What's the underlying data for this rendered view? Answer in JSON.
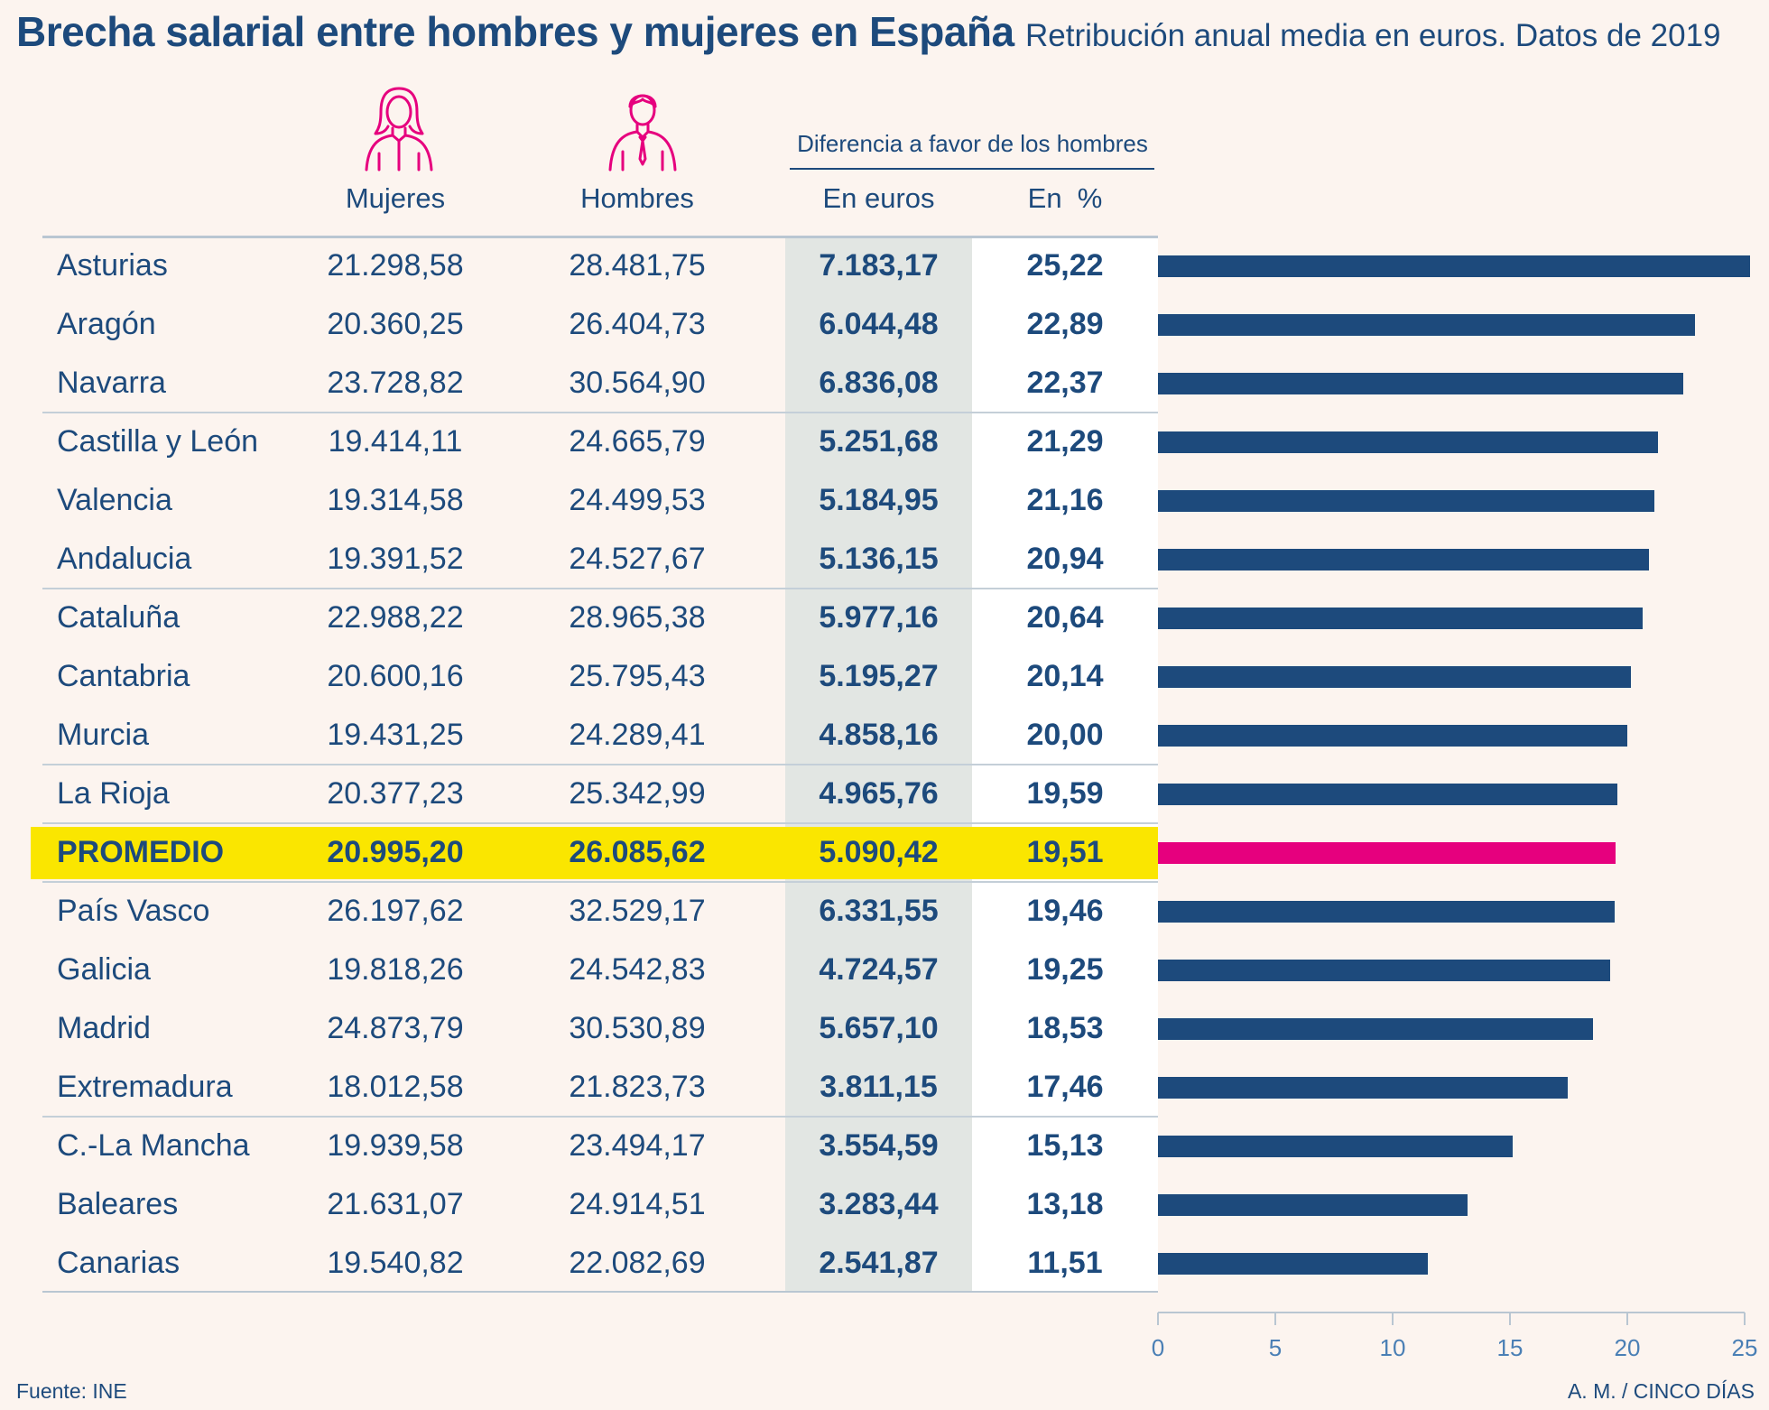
{
  "header": {
    "title": "Brecha salarial entre hombres y mujeres en España",
    "subtitle": "Retribución anual media en euros. Datos de 2019"
  },
  "columns": {
    "women": "Mujeres",
    "men": "Hombres",
    "group": "Diferencia a favor de los hombres",
    "euros": "En euros",
    "percent": "En  %"
  },
  "icons": {
    "women": "woman-icon",
    "men": "man-icon"
  },
  "colors": {
    "bar": "#1d4a7c",
    "average_bar": "#e6007e",
    "highlight": "#fae600",
    "icon": "#e6007e",
    "background": "#fcf4ef"
  },
  "chart_data": {
    "type": "table",
    "rows": [
      {
        "region": "Asturias",
        "women": "21.298,58",
        "men": "28.481,75",
        "diff_eur": "7.183,17",
        "diff_pct": "25,22",
        "pct": 25.22
      },
      {
        "region": "Aragón",
        "women": "20.360,25",
        "men": "26.404,73",
        "diff_eur": "6.044,48",
        "diff_pct": "22,89",
        "pct": 22.89
      },
      {
        "region": "Navarra",
        "women": "23.728,82",
        "men": "30.564,90",
        "diff_eur": "6.836,08",
        "diff_pct": "22,37",
        "pct": 22.37
      },
      {
        "region": "Castilla y León",
        "women": "19.414,11",
        "men": "24.665,79",
        "diff_eur": "5.251,68",
        "diff_pct": "21,29",
        "pct": 21.29
      },
      {
        "region": "Valencia",
        "women": "19.314,58",
        "men": "24.499,53",
        "diff_eur": "5.184,95",
        "diff_pct": "21,16",
        "pct": 21.16
      },
      {
        "region": "Andalucia",
        "women": "19.391,52",
        "men": "24.527,67",
        "diff_eur": "5.136,15",
        "diff_pct": "20,94",
        "pct": 20.94
      },
      {
        "region": "Cataluña",
        "women": "22.988,22",
        "men": "28.965,38",
        "diff_eur": "5.977,16",
        "diff_pct": "20,64",
        "pct": 20.64
      },
      {
        "region": "Cantabria",
        "women": "20.600,16",
        "men": "25.795,43",
        "diff_eur": "5.195,27",
        "diff_pct": "20,14",
        "pct": 20.14
      },
      {
        "region": "Murcia",
        "women": "19.431,25",
        "men": "24.289,41",
        "diff_eur": "4.858,16",
        "diff_pct": "20,00",
        "pct": 20.0
      },
      {
        "region": "La Rioja",
        "women": "20.377,23",
        "men": "25.342,99",
        "diff_eur": "4.965,76",
        "diff_pct": "19,59",
        "pct": 19.59
      },
      {
        "region": "PROMEDIO",
        "women": "20.995,20",
        "men": "26.085,62",
        "diff_eur": "5.090,42",
        "diff_pct": "19,51",
        "pct": 19.51,
        "highlight": true
      },
      {
        "region": "País Vasco",
        "women": "26.197,62",
        "men": "32.529,17",
        "diff_eur": "6.331,55",
        "diff_pct": "19,46",
        "pct": 19.46
      },
      {
        "region": "Galicia",
        "women": "19.818,26",
        "men": "24.542,83",
        "diff_eur": "4.724,57",
        "diff_pct": "19,25",
        "pct": 19.25
      },
      {
        "region": "Madrid",
        "women": "24.873,79",
        "men": "30.530,89",
        "diff_eur": "5.657,10",
        "diff_pct": "18,53",
        "pct": 18.53
      },
      {
        "region": "Extremadura",
        "women": "18.012,58",
        "men": "21.823,73",
        "diff_eur": "3.811,15",
        "diff_pct": "17,46",
        "pct": 17.46
      },
      {
        "region": "C.-La Mancha",
        "women": "19.939,58",
        "men": "23.494,17",
        "diff_eur": "3.554,59",
        "diff_pct": "15,13",
        "pct": 15.13
      },
      {
        "region": "Baleares",
        "women": "21.631,07",
        "men": "24.914,51",
        "diff_eur": "3.283,44",
        "diff_pct": "13,18",
        "pct": 13.18
      },
      {
        "region": "Canarias",
        "women": "19.540,82",
        "men": "22.082,69",
        "diff_eur": "2.541,87",
        "diff_pct": "11,51",
        "pct": 11.51
      }
    ],
    "separators_after_rows": [
      2,
      5,
      8,
      9,
      10,
      14
    ],
    "bar_axis": {
      "xlim": [
        0,
        25
      ],
      "ticks": [
        0,
        5,
        10,
        15,
        20,
        25
      ]
    }
  },
  "footer": {
    "source": "Fuente: INE",
    "credit": "A. M. / CINCO DÍAS"
  }
}
